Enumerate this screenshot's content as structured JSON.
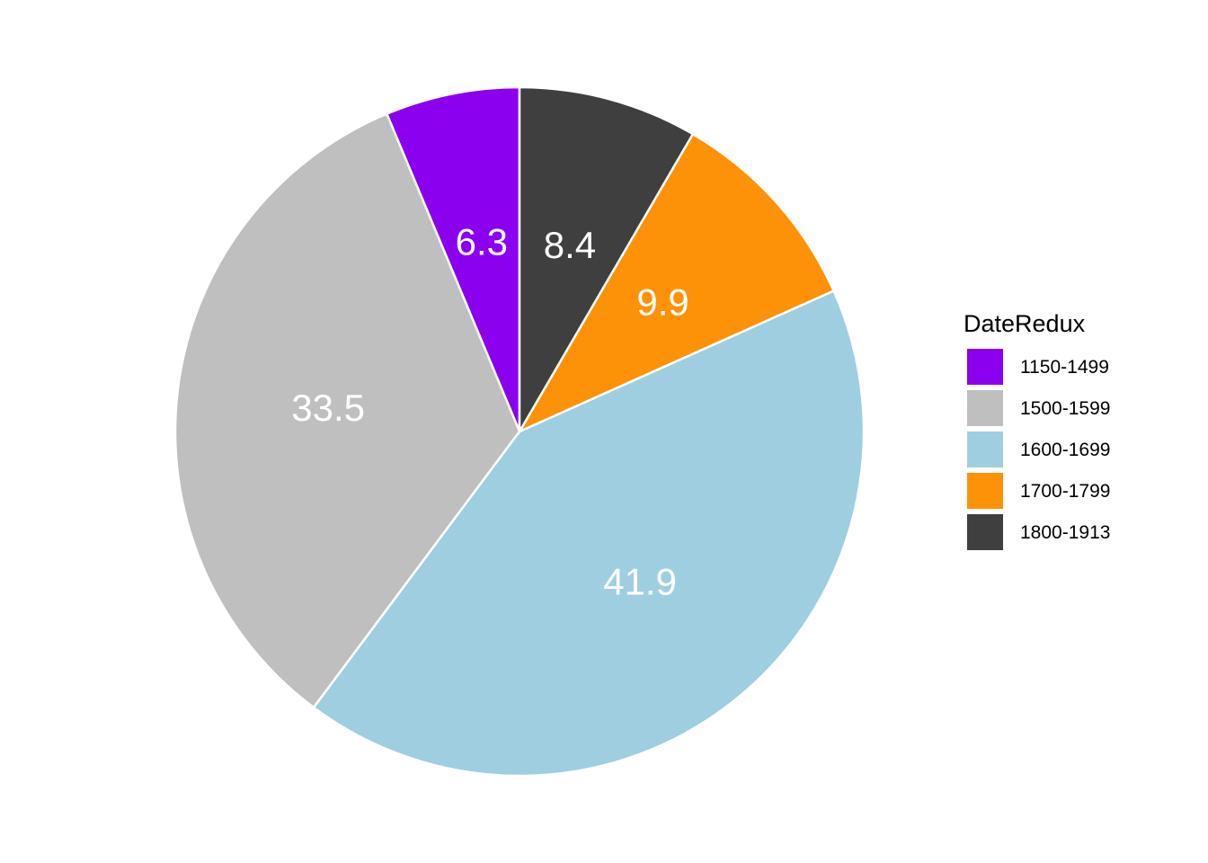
{
  "chart_data": {
    "type": "pie",
    "categories": [
      "1150-1499",
      "1500-1599",
      "1600-1699",
      "1700-1799",
      "1800-1913"
    ],
    "values": [
      6.3,
      33.5,
      41.9,
      9.9,
      8.4
    ],
    "labels": [
      "6.3",
      "33.5",
      "41.9",
      "9.9",
      "8.4"
    ],
    "colors": [
      "#8b00ee",
      "#bfbfbf",
      "#9fcee0",
      "#fd9209",
      "#3f3f3f"
    ],
    "direction": "counter-clockwise",
    "start": "12 o'clock",
    "legend": {
      "title": "DateRedux",
      "position": "right"
    }
  }
}
